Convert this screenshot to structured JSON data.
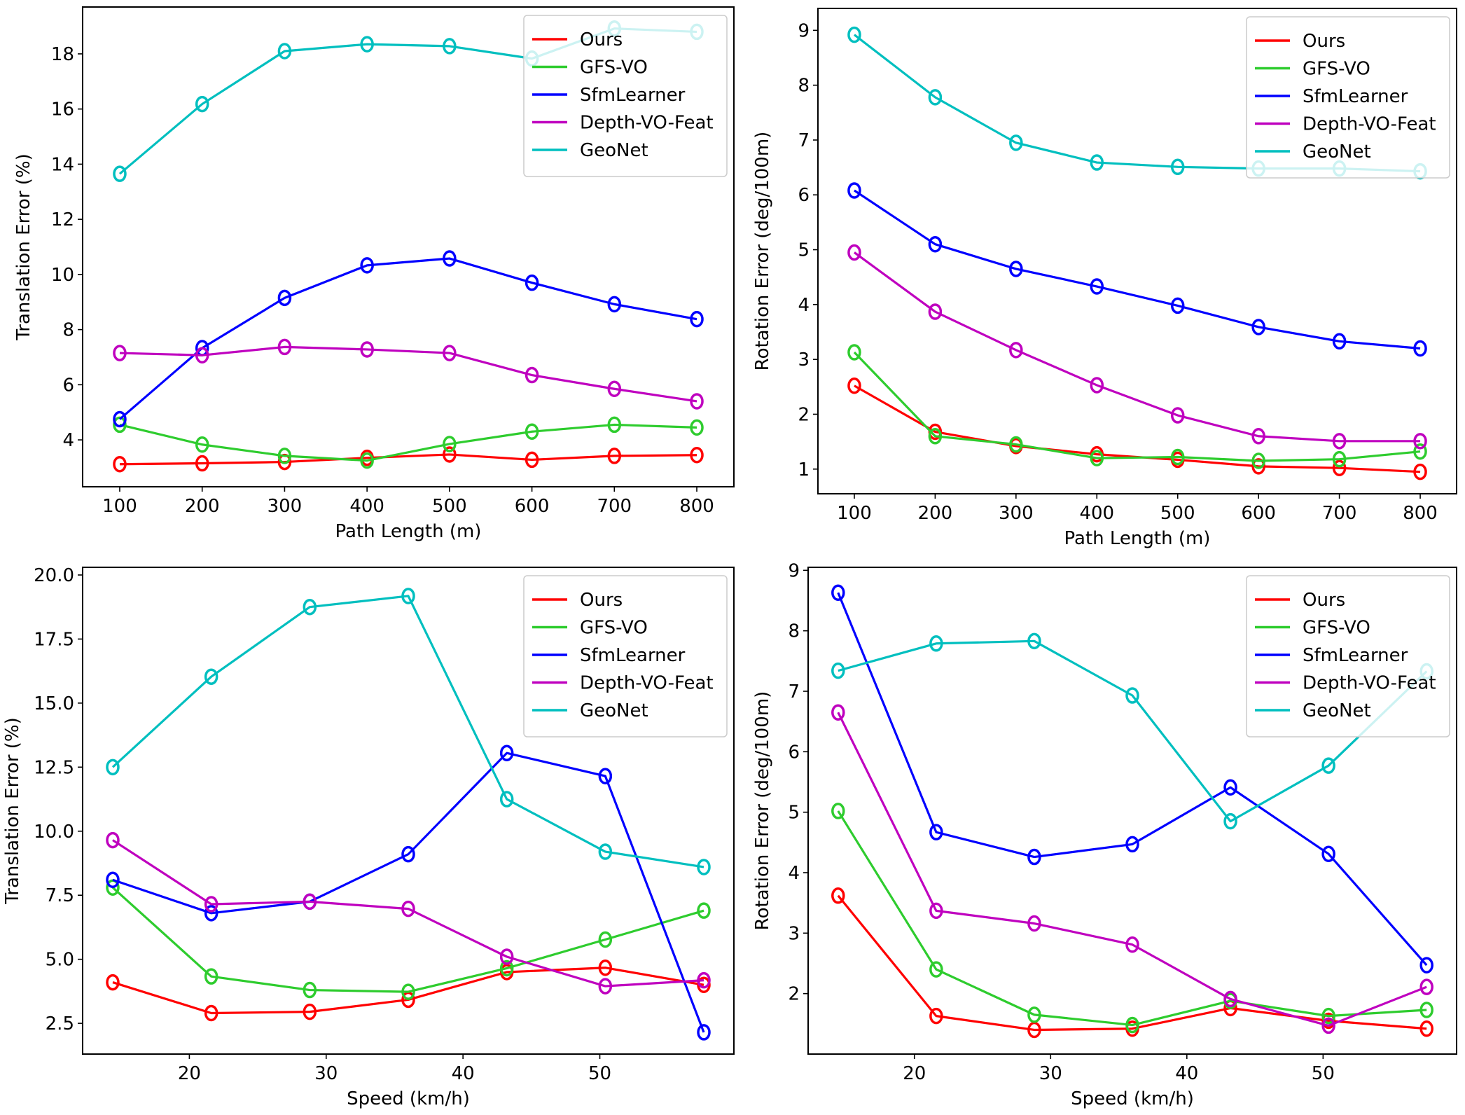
{
  "chart_data": [
    {
      "type": "line",
      "title": "",
      "xlabel": "Path Length (m)",
      "ylabel": "Translation Error (%)",
      "x": [
        100,
        200,
        300,
        400,
        500,
        600,
        700,
        800
      ],
      "xticks": [
        100,
        200,
        300,
        400,
        500,
        600,
        700,
        800
      ],
      "xtick_labels": [
        "100",
        "200",
        "300",
        "400",
        "500",
        "600",
        "700",
        "800"
      ],
      "yticks": [
        4,
        6,
        8,
        10,
        12,
        14,
        16,
        18
      ],
      "ytick_labels": [
        "4",
        "6",
        "8",
        "10",
        "12",
        "14",
        "16",
        "18"
      ],
      "xlim": [
        55,
        845
      ],
      "ylim": [
        2.3,
        19.7
      ],
      "grid": false,
      "legend_position": "top-right",
      "marker": "open-circle",
      "series": [
        {
          "name": "Ours",
          "color": "#ff0000",
          "values": [
            3.12,
            3.15,
            3.2,
            3.35,
            3.47,
            3.28,
            3.42,
            3.45
          ]
        },
        {
          "name": "GFS-VO",
          "color": "#2ecc2e",
          "values": [
            4.55,
            3.83,
            3.42,
            3.25,
            3.85,
            4.3,
            4.55,
            4.45
          ]
        },
        {
          "name": "SfmLearner",
          "color": "#0000ff",
          "values": [
            4.75,
            7.33,
            9.15,
            10.33,
            10.58,
            9.7,
            8.92,
            8.38
          ]
        },
        {
          "name": "Depth-VO-Feat",
          "color": "#bf00bf",
          "values": [
            7.15,
            7.07,
            7.37,
            7.28,
            7.15,
            6.35,
            5.85,
            5.4
          ]
        },
        {
          "name": "GeoNet",
          "color": "#00bfbf",
          "values": [
            13.65,
            16.18,
            18.1,
            18.35,
            18.28,
            17.83,
            18.92,
            18.8
          ]
        }
      ]
    },
    {
      "type": "line",
      "title": "",
      "xlabel": "Path Length (m)",
      "ylabel": "Rotation Error (deg/100m)",
      "x": [
        100,
        200,
        300,
        400,
        500,
        600,
        700,
        800
      ],
      "xticks": [
        100,
        200,
        300,
        400,
        500,
        600,
        700,
        800
      ],
      "xtick_labels": [
        "100",
        "200",
        "300",
        "400",
        "500",
        "600",
        "700",
        "800"
      ],
      "yticks": [
        1,
        2,
        3,
        4,
        5,
        6,
        7,
        8,
        9
      ],
      "ytick_labels": [
        "1",
        "2",
        "3",
        "4",
        "5",
        "6",
        "7",
        "8",
        "9"
      ],
      "xlim": [
        55,
        845
      ],
      "ylim": [
        0.55,
        9.4
      ],
      "grid": false,
      "legend_position": "top-right",
      "marker": "open-circle",
      "series": [
        {
          "name": "Ours",
          "color": "#ff0000",
          "values": [
            2.52,
            1.68,
            1.42,
            1.27,
            1.17,
            1.05,
            1.02,
            0.95
          ]
        },
        {
          "name": "GFS-VO",
          "color": "#2ecc2e",
          "values": [
            3.13,
            1.6,
            1.45,
            1.2,
            1.22,
            1.15,
            1.18,
            1.32
          ]
        },
        {
          "name": "SfmLearner",
          "color": "#0000ff",
          "values": [
            6.08,
            5.1,
            4.65,
            4.33,
            3.98,
            3.59,
            3.33,
            3.2
          ]
        },
        {
          "name": "Depth-VO-Feat",
          "color": "#bf00bf",
          "values": [
            4.95,
            3.87,
            3.17,
            2.53,
            1.98,
            1.6,
            1.51,
            1.51
          ]
        },
        {
          "name": "GeoNet",
          "color": "#00bfbf",
          "values": [
            8.92,
            7.78,
            6.95,
            6.59,
            6.51,
            6.48,
            6.48,
            6.43
          ]
        }
      ]
    },
    {
      "type": "line",
      "title": "",
      "xlabel": "Speed (km/h)",
      "ylabel": "Translation Error (%)",
      "x": [
        14.4,
        21.6,
        28.8,
        36.0,
        43.2,
        50.4,
        57.6
      ],
      "xticks": [
        20,
        30,
        40,
        50
      ],
      "xtick_labels": [
        "20",
        "30",
        "40",
        "50"
      ],
      "yticks": [
        2.5,
        5.0,
        7.5,
        10.0,
        12.5,
        15.0,
        17.5,
        20.0
      ],
      "ytick_labels": [
        "2.5",
        "5.0",
        "7.5",
        "10.0",
        "12.5",
        "15.0",
        "17.5",
        "20.0"
      ],
      "xlim": [
        12.2,
        59.8
      ],
      "ylim": [
        1.3,
        20.3
      ],
      "grid": false,
      "legend_position": "top-right",
      "marker": "open-circle",
      "series": [
        {
          "name": "Ours",
          "color": "#ff0000",
          "values": [
            4.1,
            2.9,
            2.95,
            3.42,
            4.5,
            4.67,
            4.0
          ]
        },
        {
          "name": "GFS-VO",
          "color": "#2ecc2e",
          "values": [
            7.8,
            4.33,
            3.8,
            3.73,
            4.65,
            5.77,
            6.9
          ]
        },
        {
          "name": "SfmLearner",
          "color": "#0000ff",
          "values": [
            8.1,
            6.8,
            7.25,
            9.1,
            13.05,
            12.15,
            2.15
          ]
        },
        {
          "name": "Depth-VO-Feat",
          "color": "#bf00bf",
          "values": [
            9.65,
            7.15,
            7.25,
            6.97,
            5.1,
            3.95,
            4.18
          ]
        },
        {
          "name": "GeoNet",
          "color": "#00bfbf",
          "values": [
            12.5,
            16.03,
            18.75,
            19.18,
            11.25,
            9.2,
            8.6
          ]
        }
      ]
    },
    {
      "type": "line",
      "title": "",
      "xlabel": "Speed (km/h)",
      "ylabel": "Rotation Error (deg/100m)",
      "x": [
        14.4,
        21.6,
        28.8,
        36.0,
        43.2,
        50.4,
        57.6
      ],
      "xticks": [
        20,
        30,
        40,
        50
      ],
      "xtick_labels": [
        "20",
        "30",
        "40",
        "50"
      ],
      "yticks": [
        2,
        3,
        4,
        5,
        6,
        7,
        8,
        9
      ],
      "ytick_labels": [
        "2",
        "3",
        "4",
        "5",
        "6",
        "7",
        "8",
        "9"
      ],
      "xlim": [
        12.2,
        59.8
      ],
      "ylim": [
        1.0,
        9.05
      ],
      "grid": false,
      "legend_position": "top-right",
      "marker": "open-circle",
      "series": [
        {
          "name": "Ours",
          "color": "#ff0000",
          "values": [
            3.62,
            1.63,
            1.4,
            1.42,
            1.76,
            1.55,
            1.42
          ]
        },
        {
          "name": "GFS-VO",
          "color": "#2ecc2e",
          "values": [
            5.02,
            2.4,
            1.65,
            1.48,
            1.88,
            1.63,
            1.73
          ]
        },
        {
          "name": "SfmLearner",
          "color": "#0000ff",
          "values": [
            8.63,
            4.67,
            4.26,
            4.47,
            5.41,
            4.31,
            2.47
          ]
        },
        {
          "name": "Depth-VO-Feat",
          "color": "#bf00bf",
          "values": [
            6.65,
            3.37,
            3.16,
            2.81,
            1.91,
            1.47,
            2.11
          ]
        },
        {
          "name": "GeoNet",
          "color": "#00bfbf",
          "values": [
            7.34,
            7.79,
            7.83,
            6.93,
            4.85,
            5.77,
            7.33
          ]
        }
      ]
    }
  ]
}
